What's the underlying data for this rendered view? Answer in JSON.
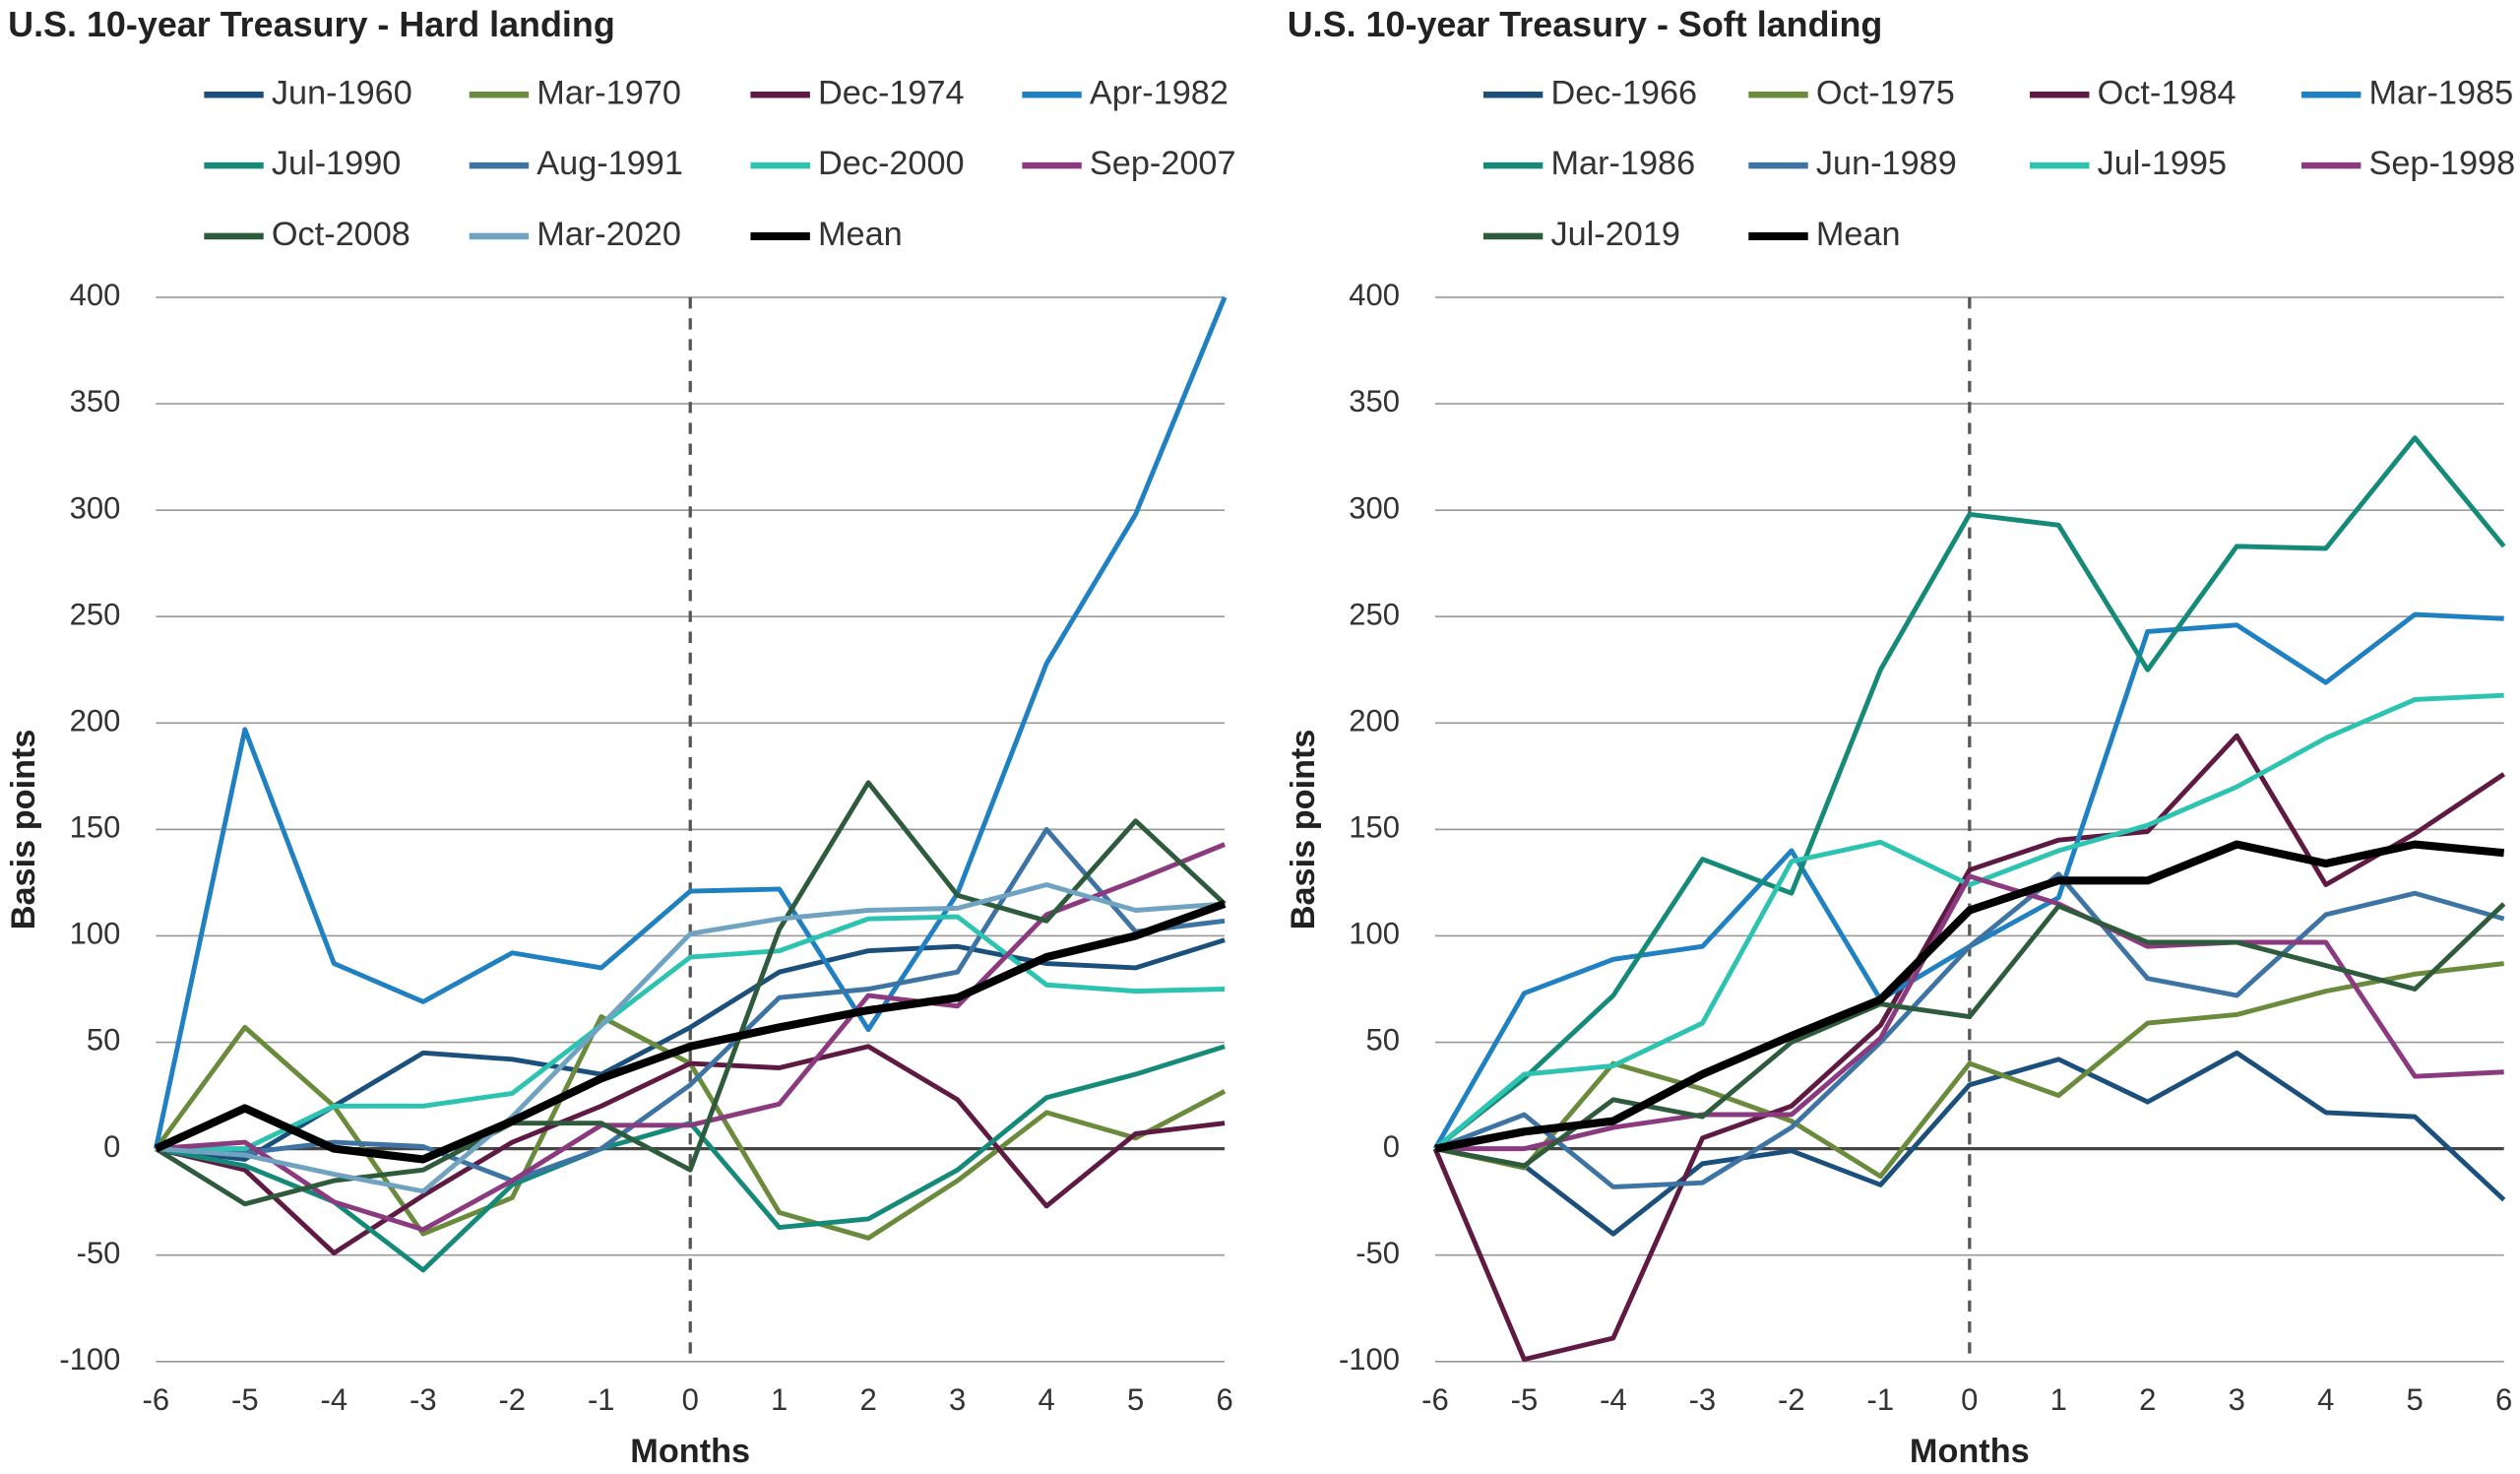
{
  "chart_data": [
    {
      "type": "line",
      "title": "U.S. 10-year Treasury - Hard landing",
      "x_label": "Months",
      "y_label": "Basis points",
      "x": [
        -6,
        -5,
        -4,
        -3,
        -2,
        -1,
        0,
        1,
        2,
        3,
        4,
        5,
        6
      ],
      "xlim": [
        -6,
        6
      ],
      "xticks": [
        -6,
        -5,
        -4,
        -3,
        -2,
        -1,
        0,
        1,
        2,
        3,
        4,
        5,
        6
      ],
      "ylim": [
        -100,
        400
      ],
      "yticks": [
        -100,
        -50,
        0,
        50,
        100,
        150,
        200,
        250,
        300,
        350,
        400
      ],
      "grid": true,
      "vline": 0,
      "series": [
        {
          "name": "Jun-1960",
          "color": "#1b4f7c",
          "values": [
            0,
            -5,
            20,
            45,
            42,
            35,
            57,
            83,
            93,
            95,
            87,
            85,
            98
          ]
        },
        {
          "name": "Mar-1970",
          "color": "#6a8a3c",
          "values": [
            0,
            57,
            20,
            -40,
            -23,
            62,
            40,
            -30,
            -42,
            -15,
            17,
            5,
            27
          ]
        },
        {
          "name": "Dec-1974",
          "color": "#5e1a42",
          "values": [
            0,
            -10,
            -49,
            -22,
            3,
            20,
            40,
            38,
            48,
            23,
            -27,
            7,
            12
          ]
        },
        {
          "name": "Apr-1982",
          "color": "#1f80c2",
          "values": [
            0,
            197,
            87,
            69,
            92,
            85,
            121,
            122,
            56,
            120,
            228,
            298,
            400
          ]
        },
        {
          "name": "Jul-1990",
          "color": "#168a78",
          "values": [
            0,
            -8,
            -25,
            -57,
            -17,
            0,
            12,
            -37,
            -33,
            -10,
            24,
            35,
            48
          ]
        },
        {
          "name": "Aug-1991",
          "color": "#3d74a4",
          "values": [
            0,
            -2,
            3,
            1,
            -15,
            0,
            30,
            71,
            75,
            83,
            150,
            102,
            107
          ]
        },
        {
          "name": "Dec-2000",
          "color": "#2cc4b1",
          "values": [
            0,
            0,
            20,
            20,
            26,
            58,
            90,
            93,
            108,
            109,
            77,
            74,
            75
          ]
        },
        {
          "name": "Sep-2007",
          "color": "#8b3a80",
          "values": [
            0,
            3,
            -25,
            -38,
            -15,
            11,
            11,
            21,
            72,
            67,
            110,
            126,
            143
          ]
        },
        {
          "name": "Oct-2008",
          "color": "#2e5b3c",
          "values": [
            0,
            -26,
            -15,
            -10,
            12,
            12,
            -10,
            103,
            172,
            119,
            107,
            154,
            115
          ]
        },
        {
          "name": "Mar-2020",
          "color": "#6fa3c1",
          "values": [
            0,
            -3,
            -12,
            -20,
            15,
            58,
            101,
            108,
            112,
            113,
            124,
            112,
            115
          ]
        },
        {
          "name": "Mean",
          "color": "#000000",
          "values": [
            0,
            19,
            0,
            -5,
            13,
            33,
            48,
            57,
            65,
            71,
            90,
            100,
            115
          ]
        }
      ]
    },
    {
      "type": "line",
      "title": "U.S. 10-year Treasury - Soft landing",
      "x_label": "Months",
      "y_label": "Basis points",
      "x": [
        -6,
        -5,
        -4,
        -3,
        -2,
        -1,
        0,
        1,
        2,
        3,
        4,
        5,
        6
      ],
      "xlim": [
        -6,
        6
      ],
      "xticks": [
        -6,
        -5,
        -4,
        -3,
        -2,
        -1,
        0,
        1,
        2,
        3,
        4,
        5,
        6
      ],
      "ylim": [
        -100,
        400
      ],
      "yticks": [
        -100,
        -50,
        0,
        50,
        100,
        150,
        200,
        250,
        300,
        350,
        400
      ],
      "grid": true,
      "vline": 0,
      "series": [
        {
          "name": "Dec-1966",
          "color": "#1b4f7c",
          "values": [
            0,
            -8,
            -40,
            -7,
            -1,
            -17,
            30,
            42,
            22,
            45,
            17,
            15,
            -24
          ]
        },
        {
          "name": "Oct-1975",
          "color": "#6a8a3c",
          "values": [
            0,
            -9,
            40,
            28,
            13,
            -13,
            40,
            25,
            59,
            63,
            74,
            82,
            87
          ]
        },
        {
          "name": "Oct-1984",
          "color": "#5e1a42",
          "values": [
            0,
            -99,
            -89,
            5,
            20,
            58,
            131,
            145,
            149,
            194,
            124,
            148,
            176
          ]
        },
        {
          "name": "Mar-1985",
          "color": "#1f80c2",
          "values": [
            0,
            73,
            89,
            95,
            140,
            70,
            95,
            118,
            243,
            246,
            219,
            251,
            249
          ]
        },
        {
          "name": "Mar-1986",
          "color": "#168a78",
          "values": [
            0,
            33,
            72,
            136,
            120,
            225,
            298,
            293,
            225,
            283,
            282,
            334,
            283
          ]
        },
        {
          "name": "Jun-1989",
          "color": "#3d74a4",
          "values": [
            0,
            16,
            -18,
            -16,
            10,
            50,
            95,
            129,
            80,
            72,
            110,
            120,
            108
          ]
        },
        {
          "name": "Jul-1995",
          "color": "#2cc4b1",
          "values": [
            0,
            35,
            39,
            59,
            135,
            144,
            124,
            140,
            152,
            170,
            193,
            211,
            213
          ]
        },
        {
          "name": "Sep-1998",
          "color": "#8b3a80",
          "values": [
            0,
            0,
            10,
            16,
            16,
            52,
            128,
            115,
            95,
            97,
            97,
            34,
            36
          ]
        },
        {
          "name": "Jul-2019",
          "color": "#2e5b3c",
          "values": [
            0,
            -8,
            23,
            15,
            50,
            68,
            62,
            114,
            97,
            97,
            86,
            75,
            115
          ]
        },
        {
          "name": "Mean",
          "color": "#000000",
          "values": [
            0,
            8,
            13,
            35,
            53,
            70,
            112,
            126,
            126,
            143,
            134,
            143,
            139
          ]
        }
      ]
    }
  ]
}
